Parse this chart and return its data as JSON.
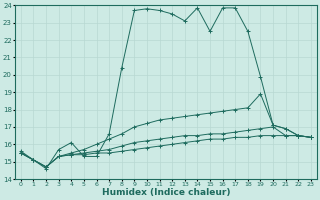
{
  "xlabel": "Humidex (Indice chaleur)",
  "bg_color": "#cdeae4",
  "line_color": "#1e6b5e",
  "grid_color": "#b8d8d2",
  "xlim": [
    -0.5,
    23.5
  ],
  "ylim": [
    14,
    24
  ],
  "xticks": [
    0,
    1,
    2,
    3,
    4,
    5,
    6,
    7,
    8,
    9,
    10,
    11,
    12,
    13,
    14,
    15,
    16,
    17,
    18,
    19,
    20,
    21,
    22,
    23
  ],
  "yticks": [
    14,
    15,
    16,
    17,
    18,
    19,
    20,
    21,
    22,
    23,
    24
  ],
  "series": [
    [
      15.6,
      15.1,
      14.6,
      15.7,
      16.1,
      15.3,
      15.3,
      16.6,
      20.4,
      23.7,
      23.8,
      23.7,
      23.5,
      23.1,
      23.85,
      22.5,
      23.85,
      23.85,
      22.5,
      19.9,
      17.1,
      16.9,
      16.5,
      16.4
    ],
    [
      15.5,
      15.1,
      14.7,
      15.3,
      15.4,
      15.5,
      15.6,
      15.7,
      15.9,
      16.1,
      16.2,
      16.3,
      16.4,
      16.5,
      16.5,
      16.6,
      16.6,
      16.7,
      16.8,
      16.9,
      17.0,
      16.5,
      16.5,
      16.4
    ],
    [
      15.5,
      15.1,
      14.7,
      15.3,
      15.5,
      15.7,
      16.0,
      16.3,
      16.6,
      17.0,
      17.2,
      17.4,
      17.5,
      17.6,
      17.7,
      17.8,
      17.9,
      18.0,
      18.1,
      18.9,
      17.1,
      16.9,
      16.5,
      16.4
    ],
    [
      15.5,
      15.1,
      14.7,
      15.3,
      15.4,
      15.4,
      15.5,
      15.5,
      15.6,
      15.7,
      15.8,
      15.9,
      16.0,
      16.1,
      16.2,
      16.3,
      16.3,
      16.4,
      16.4,
      16.5,
      16.5,
      16.5,
      16.5,
      16.4
    ]
  ]
}
